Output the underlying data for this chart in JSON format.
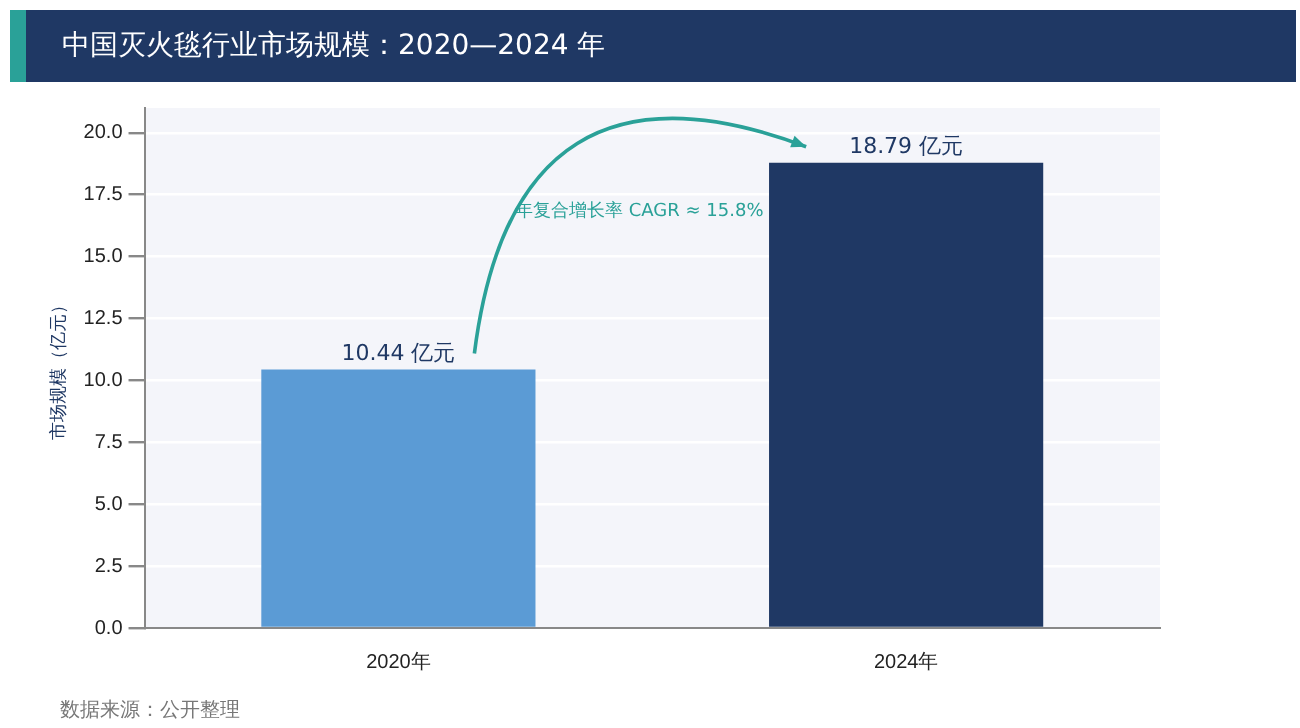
{
  "chart_data": {
    "type": "bar",
    "title": "中国灭火毯行业市场规模：2020—2024 年",
    "ylabel": "市场规模（亿元）",
    "categories": [
      "2020年",
      "2024年"
    ],
    "values": [
      10.44,
      18.79
    ],
    "colors": [
      "#5b9bd5",
      "#1f3864"
    ],
    "value_labels": [
      "10.44 亿元",
      "18.79 亿元"
    ],
    "ylim": [
      0,
      21
    ],
    "yticks": [
      {
        "value": 0,
        "label": "0.0"
      },
      {
        "value": 2.5,
        "label": "2.5"
      },
      {
        "value": 5,
        "label": "5.0"
      },
      {
        "value": 7.5,
        "label": "7.5"
      },
      {
        "value": 10,
        "label": "10.0"
      },
      {
        "value": 12.5,
        "label": "12.5"
      },
      {
        "value": 15,
        "label": "15.0"
      },
      {
        "value": 17.5,
        "label": "17.5"
      },
      {
        "value": 20,
        "label": "20.0"
      }
    ],
    "grid": "y",
    "legend": false,
    "annotations": [
      "年复合增长率 CAGR ≈ 15.8%",
      "数据来源：公开整理"
    ]
  }
}
